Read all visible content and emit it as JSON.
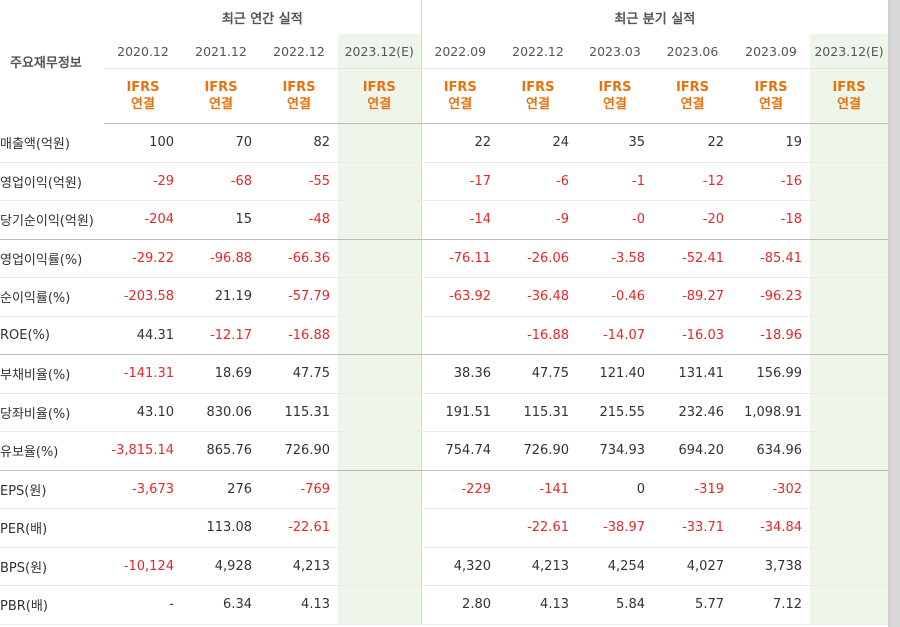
{
  "header": {
    "label": "주요재무정보",
    "annual_title": "최근 연간 실적",
    "quarter_title": "최근 분기 실적"
  },
  "columns": [
    {
      "date": "2020.12",
      "ifrs1": "IFRS",
      "ifrs2": "연결",
      "estimate": false
    },
    {
      "date": "2021.12",
      "ifrs1": "IFRS",
      "ifrs2": "연결",
      "estimate": false
    },
    {
      "date": "2022.12",
      "ifrs1": "IFRS",
      "ifrs2": "연결",
      "estimate": false
    },
    {
      "date": "2023.12(E)",
      "ifrs1": "IFRS",
      "ifrs2": "연결",
      "estimate": true
    },
    {
      "date": "2022.09",
      "ifrs1": "IFRS",
      "ifrs2": "연결",
      "estimate": false
    },
    {
      "date": "2022.12",
      "ifrs1": "IFRS",
      "ifrs2": "연결",
      "estimate": false
    },
    {
      "date": "2023.03",
      "ifrs1": "IFRS",
      "ifrs2": "연결",
      "estimate": false
    },
    {
      "date": "2023.06",
      "ifrs1": "IFRS",
      "ifrs2": "연결",
      "estimate": false
    },
    {
      "date": "2023.09",
      "ifrs1": "IFRS",
      "ifrs2": "연결",
      "estimate": false
    },
    {
      "date": "2023.12(E)",
      "ifrs1": "IFRS",
      "ifrs2": "연결",
      "estimate": true
    }
  ],
  "rows": [
    {
      "label": "매출액(억원)",
      "values": [
        "100",
        "70",
        "82",
        "",
        "22",
        "24",
        "35",
        "22",
        "19",
        ""
      ]
    },
    {
      "label": "영업이익(억원)",
      "values": [
        "-29",
        "-68",
        "-55",
        "",
        "-17",
        "-6",
        "-1",
        "-12",
        "-16",
        ""
      ]
    },
    {
      "label": "당기순이익(억원)",
      "values": [
        "-204",
        "15",
        "-48",
        "",
        "-14",
        "-9",
        "-0",
        "-20",
        "-18",
        ""
      ]
    },
    {
      "label": "영업이익률(%)",
      "values": [
        "-29.22",
        "-96.88",
        "-66.36",
        "",
        "-76.11",
        "-26.06",
        "-3.58",
        "-52.41",
        "-85.41",
        ""
      ]
    },
    {
      "label": "순이익률(%)",
      "values": [
        "-203.58",
        "21.19",
        "-57.79",
        "",
        "-63.92",
        "-36.48",
        "-0.46",
        "-89.27",
        "-96.23",
        ""
      ]
    },
    {
      "label": "ROE(%)",
      "values": [
        "44.31",
        "-12.17",
        "-16.88",
        "",
        "",
        "-16.88",
        "-14.07",
        "-16.03",
        "-18.96",
        ""
      ]
    },
    {
      "label": "부채비율(%)",
      "values": [
        "-141.31",
        "18.69",
        "47.75",
        "",
        "38.36",
        "47.75",
        "121.40",
        "131.41",
        "156.99",
        ""
      ]
    },
    {
      "label": "당좌비율(%)",
      "values": [
        "43.10",
        "830.06",
        "115.31",
        "",
        "191.51",
        "115.31",
        "215.55",
        "232.46",
        "1,098.91",
        ""
      ]
    },
    {
      "label": "유보율(%)",
      "values": [
        "-3,815.14",
        "865.76",
        "726.90",
        "",
        "754.74",
        "726.90",
        "734.93",
        "694.20",
        "634.96",
        ""
      ]
    },
    {
      "label": "EPS(원)",
      "values": [
        "-3,673",
        "276",
        "-769",
        "",
        "-229",
        "-141",
        "0",
        "-319",
        "-302",
        ""
      ]
    },
    {
      "label": "PER(배)",
      "values": [
        "",
        "113.08",
        "-22.61",
        "",
        "",
        "-22.61",
        "-38.97",
        "-33.71",
        "-34.84",
        ""
      ]
    },
    {
      "label": "BPS(원)",
      "values": [
        "-10,124",
        "4,928",
        "4,213",
        "",
        "4,320",
        "4,213",
        "4,254",
        "4,027",
        "3,738",
        ""
      ]
    },
    {
      "label": "PBR(배)",
      "values": [
        "-",
        "6.34",
        "4.13",
        "",
        "2.80",
        "4.13",
        "5.84",
        "5.77",
        "7.12",
        ""
      ]
    }
  ],
  "colors": {
    "negative": "#e02a2a",
    "ifrs": "#e8730e",
    "estimate_bg": "#eef5ea"
  }
}
